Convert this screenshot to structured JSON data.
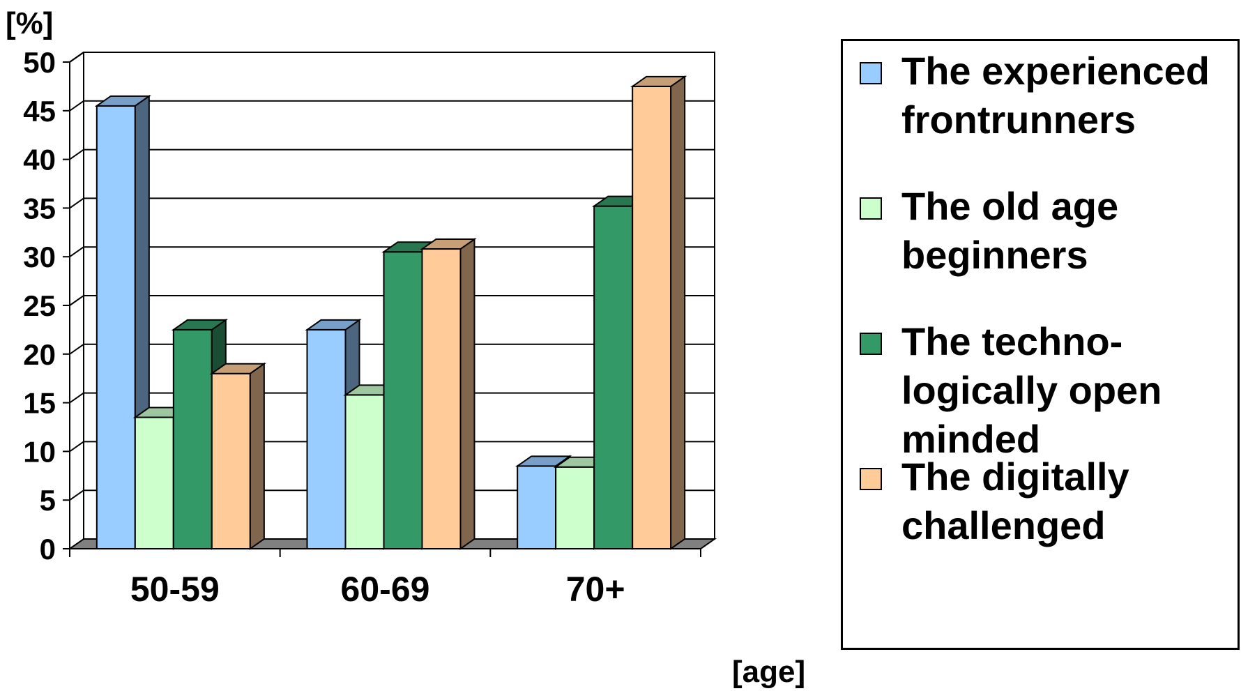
{
  "chart_data": {
    "type": "bar",
    "categories": [
      "50-59",
      "60-69",
      "70+"
    ],
    "series": [
      {
        "name": "The experienced frontrunners",
        "values": [
          45.5,
          22.5,
          8.5
        ],
        "color": "#99CCFF"
      },
      {
        "name": "The old age beginners",
        "values": [
          13.5,
          15.8,
          8.4
        ],
        "color": "#CCFFCC"
      },
      {
        "name": "The techno-logically open minded",
        "values": [
          22.5,
          30.5,
          35.2
        ],
        "color": "#339966"
      },
      {
        "name": "The digitally challenged",
        "values": [
          18.0,
          30.8,
          47.5
        ],
        "color": "#FFCC99"
      }
    ],
    "ylim": [
      0,
      50
    ],
    "yticks": [
      "0",
      "5",
      "10",
      "15",
      "20",
      "25",
      "30",
      "35",
      "40",
      "45",
      "50"
    ],
    "ylabel": "[%]",
    "xlabel": "[age]",
    "grid": true,
    "legend": "right"
  },
  "legend_lines": [
    [
      "The experienced",
      "frontrunners"
    ],
    [
      "The old age",
      "beginners"
    ],
    [
      "The techno-",
      "logically open",
      "minded"
    ],
    [
      "The digitally",
      "challenged"
    ]
  ]
}
